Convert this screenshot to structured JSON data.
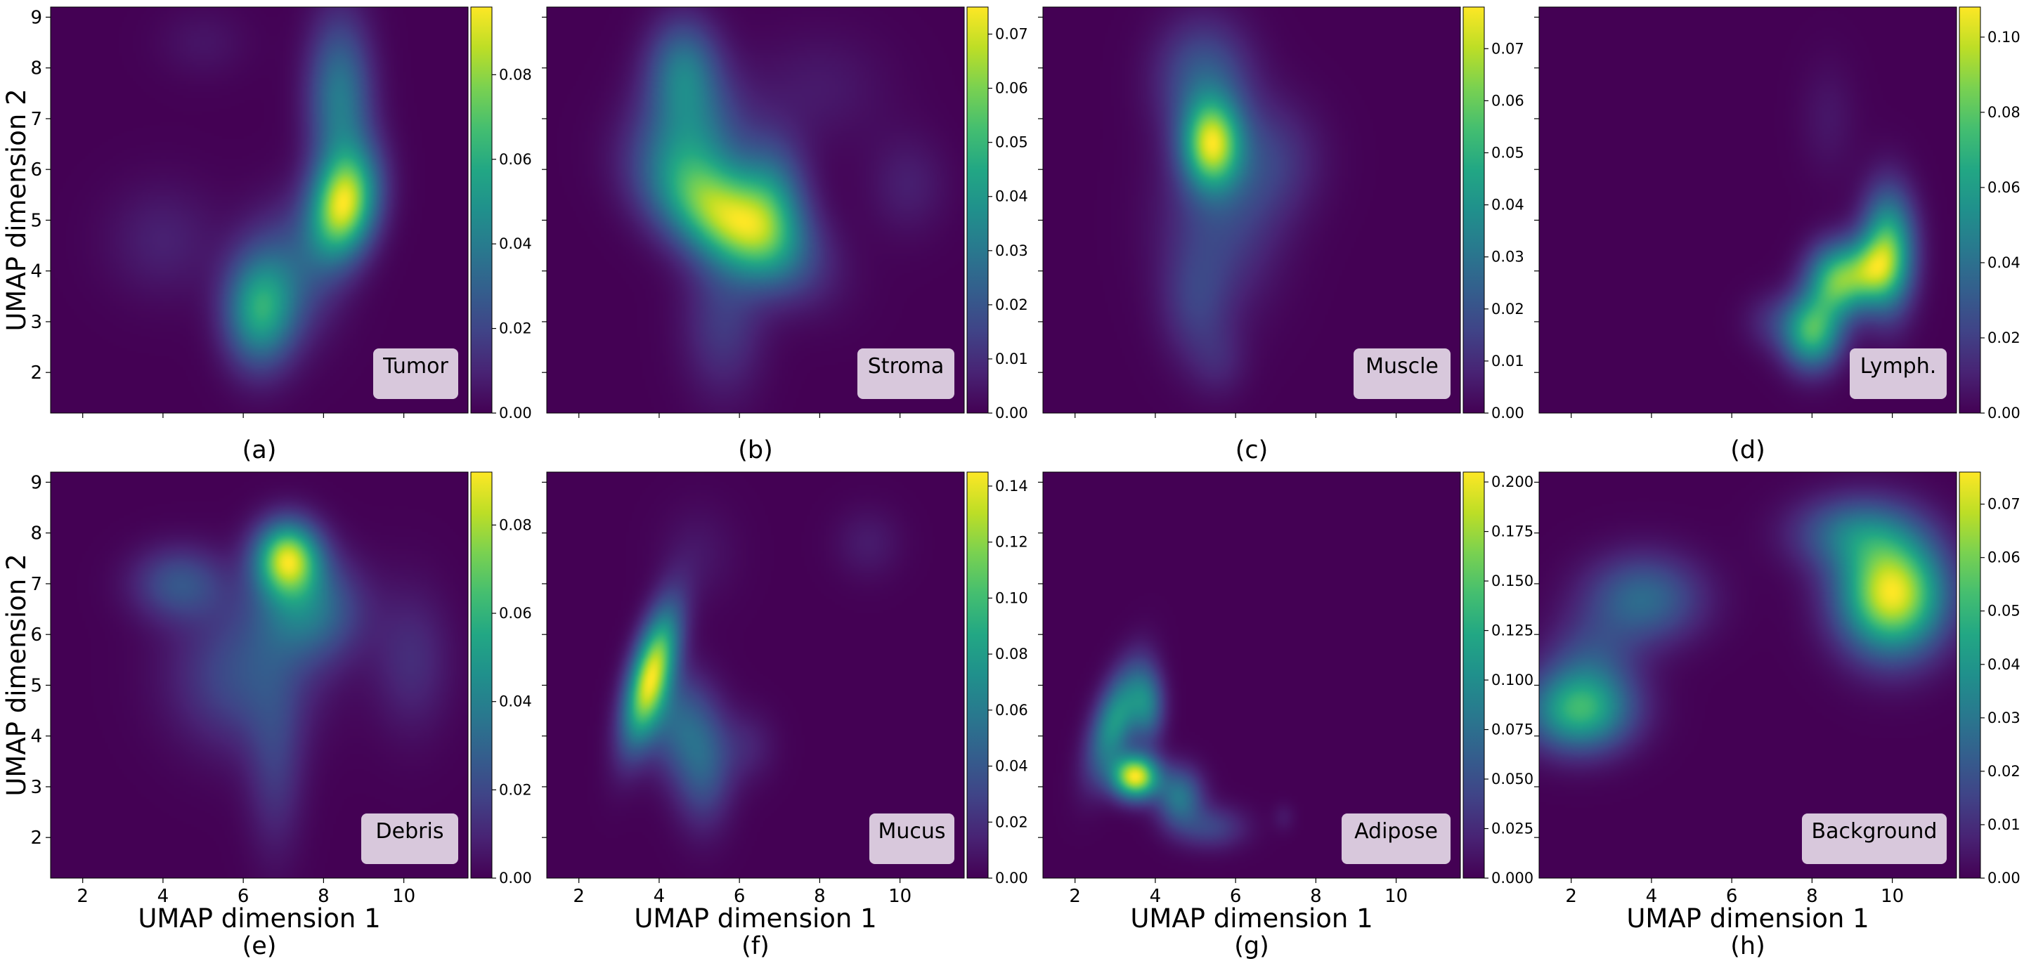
{
  "figure": {
    "xlabel": "UMAP dimension 1",
    "ylabel": "UMAP dimension 2",
    "colormap": "viridis",
    "label_box_color": "#d8c8dc",
    "background_color": "#440154"
  },
  "chart_data": [
    {
      "type": "heatmap",
      "panel": "(a)",
      "label": "Tumor",
      "xlim": [
        1.2,
        11.6
      ],
      "ylim": [
        1.2,
        9.2
      ],
      "x_ticks": [
        2,
        4,
        6,
        8,
        10
      ],
      "y_ticks": [
        2,
        3,
        4,
        5,
        6,
        7,
        8,
        9
      ],
      "colorbar": {
        "min": 0.0,
        "max": 0.096,
        "ticks": [
          "0.00",
          "0.02",
          "0.04",
          "0.06",
          "0.08"
        ]
      },
      "peaks": [
        {
          "x": 8.5,
          "y": 5.3,
          "sx": 0.55,
          "sy": 0.75,
          "w": 1.0,
          "rot": -20
        },
        {
          "x": 8.4,
          "y": 7.4,
          "sx": 0.55,
          "sy": 1.1,
          "w": 0.45,
          "rot": 0
        },
        {
          "x": 6.4,
          "y": 3.2,
          "sx": 0.6,
          "sy": 0.75,
          "w": 0.6,
          "rot": 0
        },
        {
          "x": 7.2,
          "y": 4.0,
          "sx": 0.8,
          "sy": 0.9,
          "w": 0.25,
          "rot": 0
        },
        {
          "x": 4.0,
          "y": 4.6,
          "sx": 1.0,
          "sy": 0.8,
          "w": 0.1,
          "rot": 0
        },
        {
          "x": 5.0,
          "y": 8.5,
          "sx": 0.8,
          "sy": 0.5,
          "w": 0.06,
          "rot": 0
        }
      ]
    },
    {
      "type": "heatmap",
      "panel": "(b)",
      "label": "Stroma",
      "xlim": [
        1.2,
        11.6
      ],
      "ylim": [
        1.2,
        9.2
      ],
      "x_ticks": [
        2,
        4,
        6,
        8,
        10
      ],
      "y_ticks": [
        2,
        3,
        4,
        5,
        6,
        7,
        8,
        9
      ],
      "colorbar": {
        "min": 0.0,
        "max": 0.075,
        "ticks": [
          "0.00",
          "0.01",
          "0.02",
          "0.03",
          "0.04",
          "0.05",
          "0.06",
          "0.07"
        ]
      },
      "peaks": [
        {
          "x": 5.8,
          "y": 5.0,
          "sx": 1.3,
          "sy": 0.65,
          "w": 1.0,
          "rot": -25
        },
        {
          "x": 4.8,
          "y": 6.6,
          "sx": 0.9,
          "sy": 0.9,
          "w": 0.45,
          "rot": 0
        },
        {
          "x": 4.6,
          "y": 8.0,
          "sx": 0.6,
          "sy": 0.7,
          "w": 0.4,
          "rot": 0
        },
        {
          "x": 6.8,
          "y": 5.5,
          "sx": 0.6,
          "sy": 0.8,
          "w": 0.4,
          "rot": 0
        },
        {
          "x": 5.6,
          "y": 3.0,
          "sx": 0.7,
          "sy": 1.0,
          "w": 0.2,
          "rot": 0
        },
        {
          "x": 10.2,
          "y": 5.7,
          "sx": 0.7,
          "sy": 0.7,
          "w": 0.1,
          "rot": 0
        },
        {
          "x": 8.0,
          "y": 7.6,
          "sx": 1.2,
          "sy": 0.8,
          "w": 0.08,
          "rot": 0
        }
      ]
    },
    {
      "type": "heatmap",
      "panel": "(c)",
      "label": "Muscle",
      "xlim": [
        1.2,
        11.6
      ],
      "ylim": [
        1.2,
        9.2
      ],
      "x_ticks": [
        2,
        4,
        6,
        8,
        10
      ],
      "y_ticks": [
        2,
        3,
        4,
        5,
        6,
        7,
        8,
        9
      ],
      "colorbar": {
        "min": 0.0,
        "max": 0.078,
        "ticks": [
          "0.00",
          "0.01",
          "0.02",
          "0.03",
          "0.04",
          "0.05",
          "0.06",
          "0.07"
        ]
      },
      "peaks": [
        {
          "x": 5.4,
          "y": 6.5,
          "sx": 0.5,
          "sy": 0.6,
          "w": 1.0,
          "rot": 0
        },
        {
          "x": 5.2,
          "y": 7.8,
          "sx": 0.8,
          "sy": 0.8,
          "w": 0.35,
          "rot": 0
        },
        {
          "x": 5.6,
          "y": 5.0,
          "sx": 1.0,
          "sy": 1.2,
          "w": 0.25,
          "rot": 0
        },
        {
          "x": 5.0,
          "y": 3.3,
          "sx": 0.6,
          "sy": 0.8,
          "w": 0.18,
          "rot": 0
        },
        {
          "x": 6.8,
          "y": 6.2,
          "sx": 0.9,
          "sy": 0.8,
          "w": 0.2,
          "rot": 0
        },
        {
          "x": 5.6,
          "y": 2.2,
          "sx": 0.5,
          "sy": 0.5,
          "w": 0.1,
          "rot": 0
        }
      ]
    },
    {
      "type": "heatmap",
      "panel": "(d)",
      "label": "Lymph.",
      "xlim": [
        1.2,
        11.6
      ],
      "ylim": [
        1.2,
        9.2
      ],
      "x_ticks": [
        2,
        4,
        6,
        8,
        10
      ],
      "y_ticks": [
        2,
        3,
        4,
        5,
        6,
        7,
        8,
        9
      ],
      "colorbar": {
        "min": 0.0,
        "max": 0.108,
        "ticks": [
          "0.00",
          "0.02",
          "0.04",
          "0.06",
          "0.08",
          "0.10"
        ]
      },
      "peaks": [
        {
          "x": 8.0,
          "y": 2.8,
          "sx": 0.5,
          "sy": 0.5,
          "w": 0.9,
          "rot": 0
        },
        {
          "x": 8.6,
          "y": 3.8,
          "sx": 0.5,
          "sy": 0.5,
          "w": 0.9,
          "rot": 0
        },
        {
          "x": 9.9,
          "y": 4.4,
          "sx": 0.45,
          "sy": 0.8,
          "w": 0.95,
          "rot": 0
        },
        {
          "x": 9.4,
          "y": 4.0,
          "sx": 0.45,
          "sy": 0.45,
          "w": 0.6,
          "rot": 0
        },
        {
          "x": 8.4,
          "y": 7.0,
          "sx": 0.5,
          "sy": 0.8,
          "w": 0.08,
          "rot": 0
        },
        {
          "x": 7.0,
          "y": 3.0,
          "sx": 0.5,
          "sy": 0.4,
          "w": 0.15,
          "rot": 0
        }
      ]
    },
    {
      "type": "heatmap",
      "panel": "(e)",
      "label": "Debris",
      "xlim": [
        1.2,
        11.6
      ],
      "ylim": [
        1.2,
        9.2
      ],
      "x_ticks": [
        2,
        4,
        6,
        8,
        10
      ],
      "y_ticks": [
        2,
        3,
        4,
        5,
        6,
        7,
        8,
        9
      ],
      "colorbar": {
        "min": 0.0,
        "max": 0.092,
        "ticks": [
          "0.00",
          "0.02",
          "0.04",
          "0.06",
          "0.08"
        ]
      },
      "peaks": [
        {
          "x": 7.1,
          "y": 7.5,
          "sx": 0.55,
          "sy": 0.5,
          "w": 1.0,
          "rot": 0
        },
        {
          "x": 7.6,
          "y": 6.5,
          "sx": 0.9,
          "sy": 0.7,
          "w": 0.45,
          "rot": 0
        },
        {
          "x": 4.4,
          "y": 7.0,
          "sx": 0.8,
          "sy": 0.5,
          "w": 0.3,
          "rot": 0
        },
        {
          "x": 6.0,
          "y": 5.2,
          "sx": 1.2,
          "sy": 1.0,
          "w": 0.28,
          "rot": 0
        },
        {
          "x": 6.8,
          "y": 3.4,
          "sx": 0.5,
          "sy": 1.2,
          "w": 0.18,
          "rot": 0
        },
        {
          "x": 10.2,
          "y": 5.5,
          "sx": 0.7,
          "sy": 1.0,
          "w": 0.15,
          "rot": 0
        }
      ]
    },
    {
      "type": "heatmap",
      "panel": "(f)",
      "label": "Mucus",
      "xlim": [
        1.2,
        11.6
      ],
      "ylim": [
        1.2,
        9.2
      ],
      "x_ticks": [
        2,
        4,
        6,
        8,
        10
      ],
      "y_ticks": [
        2,
        3,
        4,
        5,
        6,
        7,
        8,
        9
      ],
      "colorbar": {
        "min": 0.0,
        "max": 0.145,
        "ticks": [
          "0.00",
          "0.02",
          "0.04",
          "0.06",
          "0.08",
          "0.10",
          "0.12",
          "0.14"
        ]
      },
      "peaks": [
        {
          "x": 3.8,
          "y": 5.2,
          "sx": 0.35,
          "sy": 0.95,
          "w": 1.0,
          "rot": -20
        },
        {
          "x": 5.1,
          "y": 3.4,
          "sx": 0.5,
          "sy": 0.8,
          "w": 0.3,
          "rot": 0
        },
        {
          "x": 4.4,
          "y": 4.3,
          "sx": 0.6,
          "sy": 0.7,
          "w": 0.3,
          "rot": 0
        },
        {
          "x": 9.2,
          "y": 7.8,
          "sx": 0.6,
          "sy": 0.5,
          "w": 0.08,
          "rot": 0
        },
        {
          "x": 5.0,
          "y": 7.6,
          "sx": 0.7,
          "sy": 0.7,
          "w": 0.06,
          "rot": 0
        },
        {
          "x": 6.2,
          "y": 3.8,
          "sx": 0.5,
          "sy": 0.5,
          "w": 0.1,
          "rot": 0
        }
      ]
    },
    {
      "type": "heatmap",
      "panel": "(g)",
      "label": "Adipose",
      "xlim": [
        1.2,
        11.6
      ],
      "ylim": [
        1.2,
        9.2
      ],
      "x_ticks": [
        2,
        4,
        6,
        8,
        10
      ],
      "y_ticks": [
        2,
        3,
        4,
        5,
        6,
        7,
        8,
        9
      ],
      "colorbar": {
        "min": 0.0,
        "max": 0.205,
        "ticks": [
          "0.000",
          "0.025",
          "0.050",
          "0.075",
          "0.100",
          "0.125",
          "0.150",
          "0.175",
          "0.200"
        ]
      },
      "peaks": [
        {
          "x": 3.5,
          "y": 3.2,
          "sx": 0.4,
          "sy": 0.3,
          "w": 1.0,
          "rot": 0
        },
        {
          "x": 3.0,
          "y": 4.3,
          "sx": 0.35,
          "sy": 0.8,
          "w": 0.55,
          "rot": -25
        },
        {
          "x": 3.8,
          "y": 4.6,
          "sx": 0.3,
          "sy": 0.5,
          "w": 0.4,
          "rot": 0
        },
        {
          "x": 4.6,
          "y": 2.8,
          "sx": 0.4,
          "sy": 0.4,
          "w": 0.4,
          "rot": 0
        },
        {
          "x": 5.4,
          "y": 2.2,
          "sx": 0.6,
          "sy": 0.3,
          "w": 0.2,
          "rot": 0
        },
        {
          "x": 7.2,
          "y": 2.4,
          "sx": 0.2,
          "sy": 0.2,
          "w": 0.06,
          "rot": 0
        }
      ]
    },
    {
      "type": "heatmap",
      "panel": "(h)",
      "label": "Background",
      "xlim": [
        1.2,
        11.6
      ],
      "ylim": [
        1.2,
        9.2
      ],
      "x_ticks": [
        2,
        4,
        6,
        8,
        10
      ],
      "y_ticks": [
        2,
        3,
        4,
        5,
        6,
        7,
        8,
        9
      ],
      "colorbar": {
        "min": 0.0,
        "max": 0.076,
        "ticks": [
          "0.00",
          "0.01",
          "0.02",
          "0.03",
          "0.04",
          "0.05",
          "0.06",
          "0.07"
        ]
      },
      "peaks": [
        {
          "x": 10.0,
          "y": 6.8,
          "sx": 0.9,
          "sy": 0.8,
          "w": 1.0,
          "rot": 0
        },
        {
          "x": 2.2,
          "y": 4.5,
          "sx": 0.9,
          "sy": 0.55,
          "w": 0.65,
          "rot": 0
        },
        {
          "x": 3.8,
          "y": 6.7,
          "sx": 1.0,
          "sy": 0.6,
          "w": 0.35,
          "rot": 0
        },
        {
          "x": 2.5,
          "y": 5.5,
          "sx": 0.8,
          "sy": 0.6,
          "w": 0.2,
          "rot": 0
        },
        {
          "x": 9.0,
          "y": 8.0,
          "sx": 1.0,
          "sy": 0.5,
          "w": 0.35,
          "rot": 0
        }
      ]
    }
  ]
}
